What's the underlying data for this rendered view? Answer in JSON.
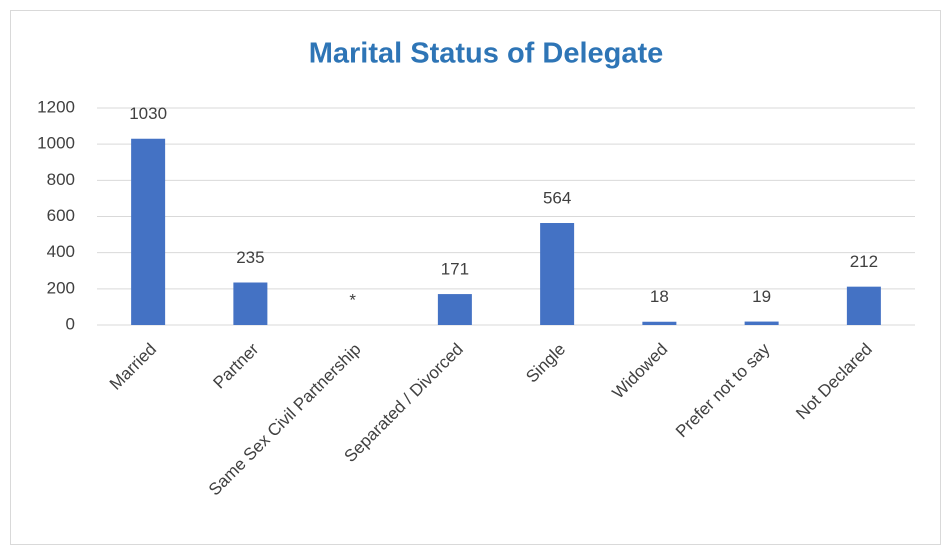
{
  "chart_data": {
    "type": "bar",
    "title": "Marital Status of Delegate",
    "categories": [
      "Married",
      "Partner",
      "Same Sex Civil Partnership",
      "Separated / Divorced",
      "Single",
      "Widowed",
      "Prefer not to say",
      "Not Declared"
    ],
    "values": [
      1030,
      235,
      null,
      171,
      564,
      18,
      19,
      212
    ],
    "value_labels": [
      "1030",
      "235",
      "*",
      "171",
      "564",
      "18",
      "19",
      "212"
    ],
    "color": "#4472c4",
    "ylim": [
      0,
      1200
    ],
    "yticks": [
      0,
      200,
      400,
      600,
      800,
      1000,
      1200
    ],
    "grid": true
  }
}
